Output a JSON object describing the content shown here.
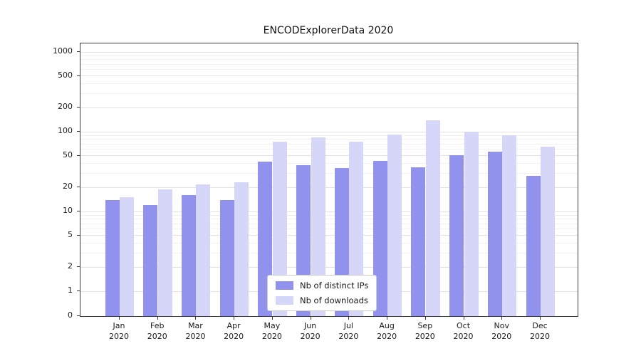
{
  "title": "ENCODExplorerData 2020",
  "chart_data": {
    "type": "bar",
    "title": "ENCODExplorerData 2020",
    "categories": [
      "Jan 2020",
      "Feb 2020",
      "Mar 2020",
      "Apr 2020",
      "May 2020",
      "Jun 2020",
      "Jul 2020",
      "Aug 2020",
      "Sep 2020",
      "Oct 2020",
      "Nov 2020",
      "Dec 2020"
    ],
    "series": [
      {
        "name": "Nb of distinct IPs",
        "color": "#9191ee",
        "values": [
          14,
          12,
          16,
          14,
          42,
          38,
          35,
          43,
          36,
          51,
          56,
          28
        ]
      },
      {
        "name": "Nb of downloads",
        "color": "#d6d6f8",
        "values": [
          15,
          19,
          22,
          23,
          75,
          85,
          75,
          93,
          140,
          100,
          90,
          65
        ]
      }
    ],
    "xlabel": "",
    "ylabel": "",
    "yscale": "symlog",
    "ylim": [
      0,
      1000
    ],
    "yticks": [
      0,
      1,
      2,
      5,
      10,
      20,
      50,
      100,
      200,
      500,
      1000
    ],
    "grid": "horizontal",
    "legend_position": "bottom-center",
    "colors": {
      "axis": "#3a3a3a",
      "grid_major": "#e2e2e2",
      "grid_minor": "#f1f1f1",
      "background": "#ffffff"
    }
  }
}
